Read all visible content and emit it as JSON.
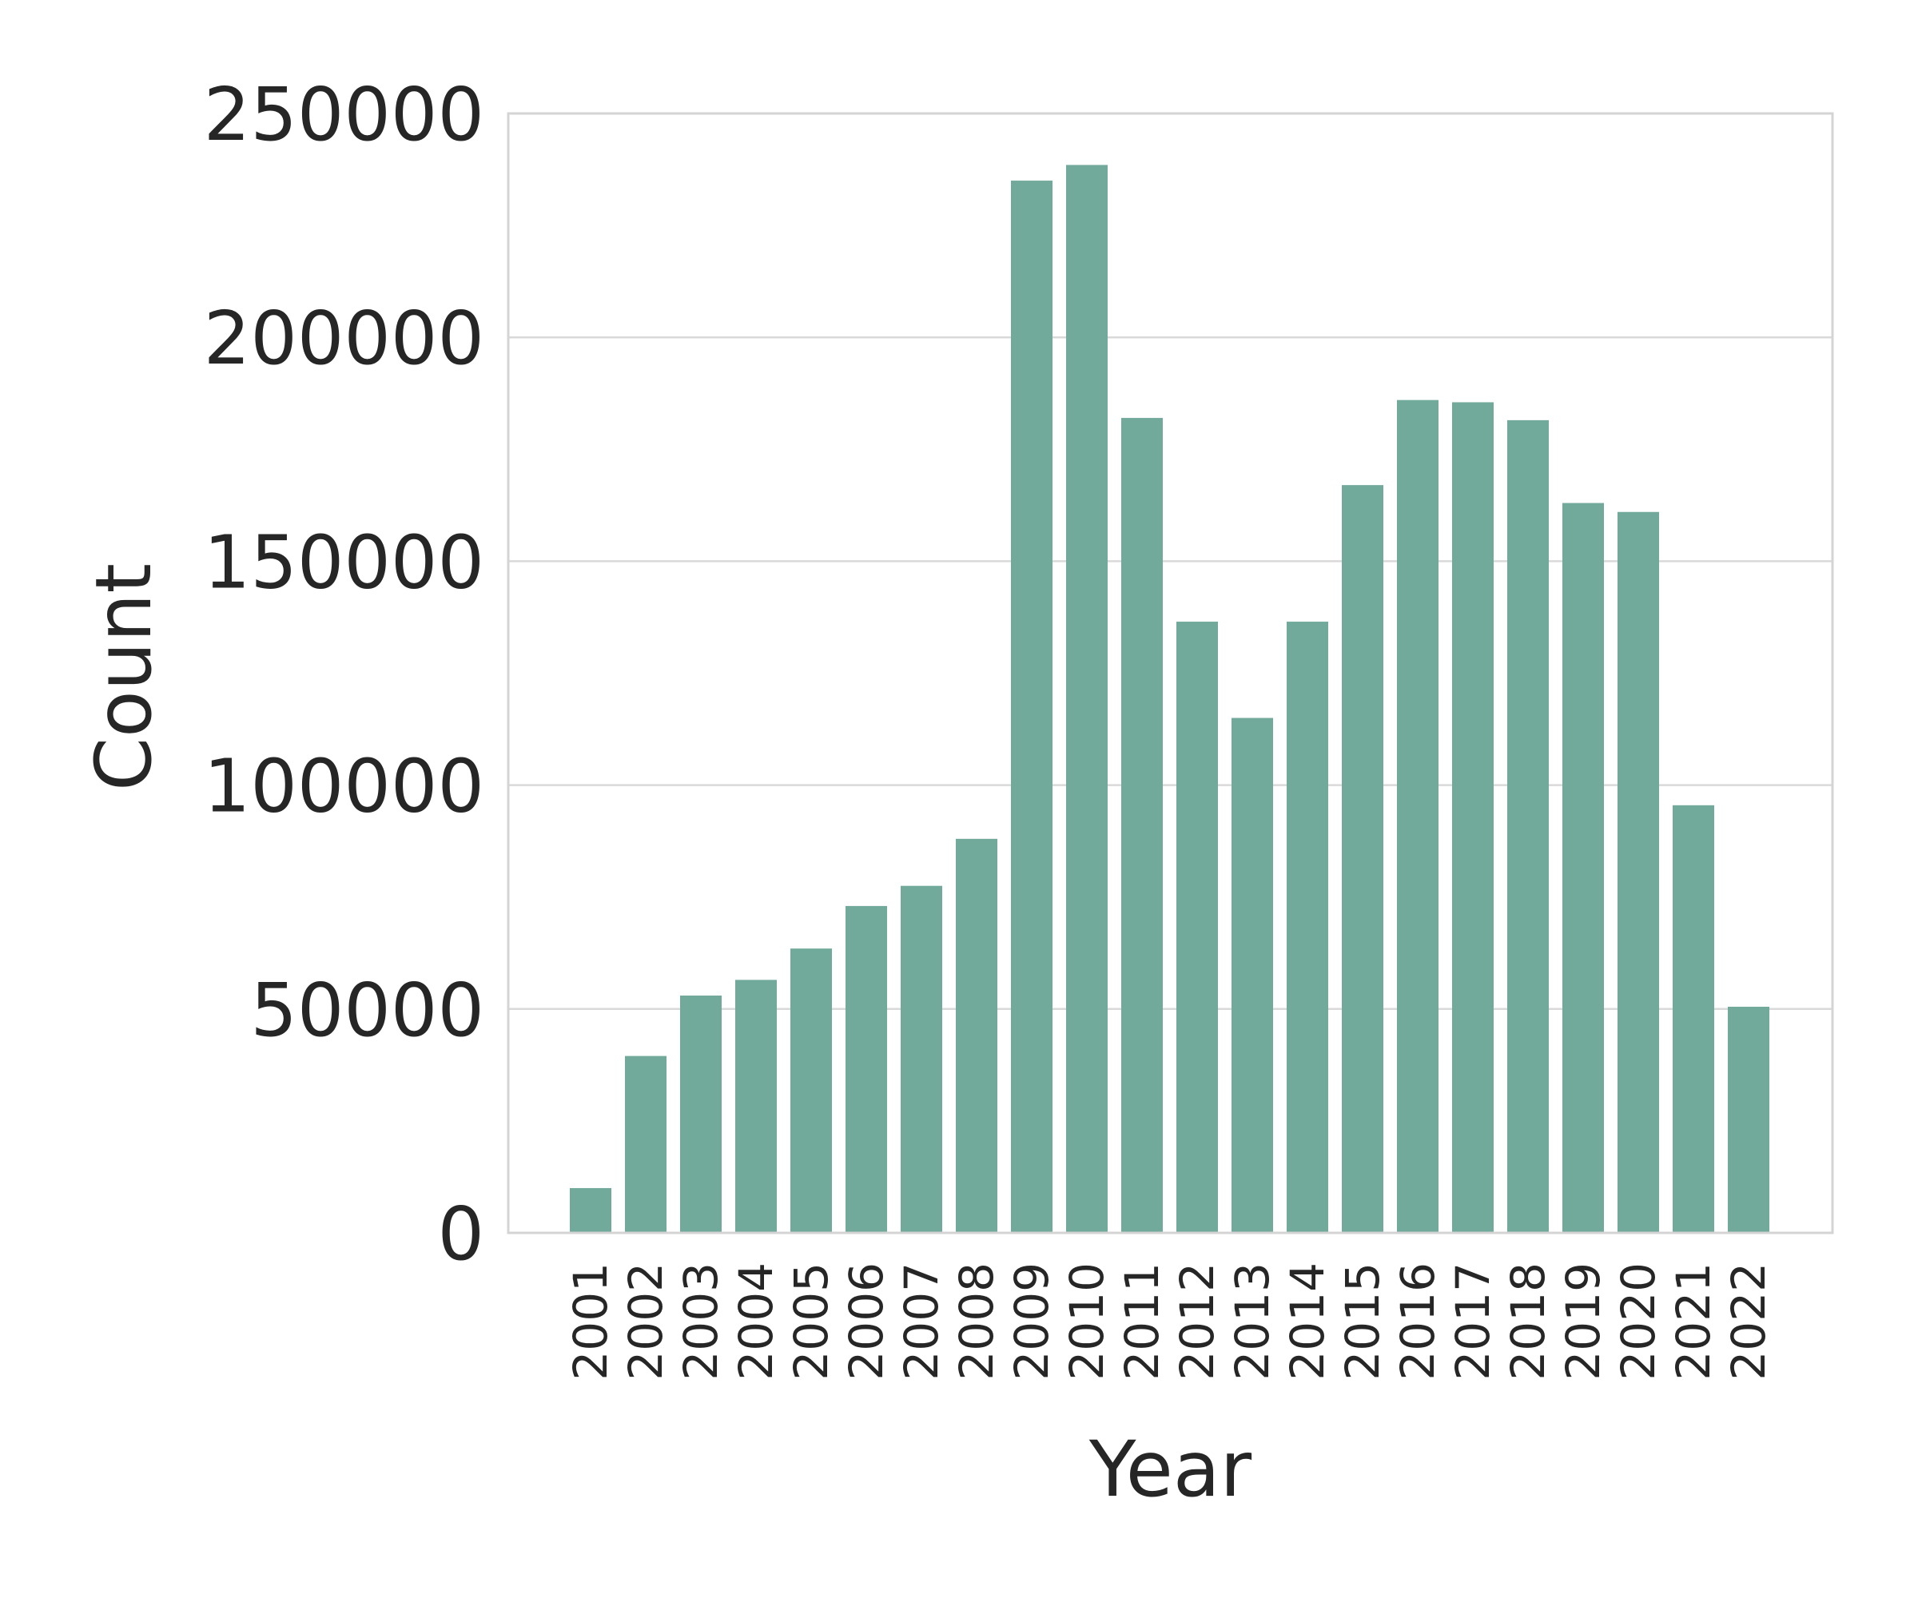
{
  "chart_data": {
    "type": "bar",
    "categories": [
      "2001",
      "2002",
      "2003",
      "2004",
      "2005",
      "2006",
      "2007",
      "2008",
      "2009",
      "2010",
      "2011",
      "2012",
      "2013",
      "2014",
      "2015",
      "2016",
      "2017",
      "2018",
      "2019",
      "2020",
      "2021",
      "2022"
    ],
    "values": [
      10000,
      39500,
      53000,
      56500,
      63500,
      73000,
      77500,
      88000,
      235000,
      238500,
      182000,
      136500,
      115000,
      136500,
      167000,
      186000,
      185500,
      181500,
      163000,
      161000,
      95500,
      50500
    ],
    "xlabel": "Year",
    "ylabel": "Count",
    "ylim": [
      0,
      250000
    ],
    "yticks": [
      "0",
      "50000",
      "100000",
      "150000",
      "200000",
      "250000"
    ],
    "ytick_values": [
      0,
      50000,
      100000,
      150000,
      200000,
      250000
    ],
    "grid": "y",
    "bar_color": "#71a99a",
    "grid_color": "#d9d9d9",
    "frame_color": "#d4d4d4"
  }
}
